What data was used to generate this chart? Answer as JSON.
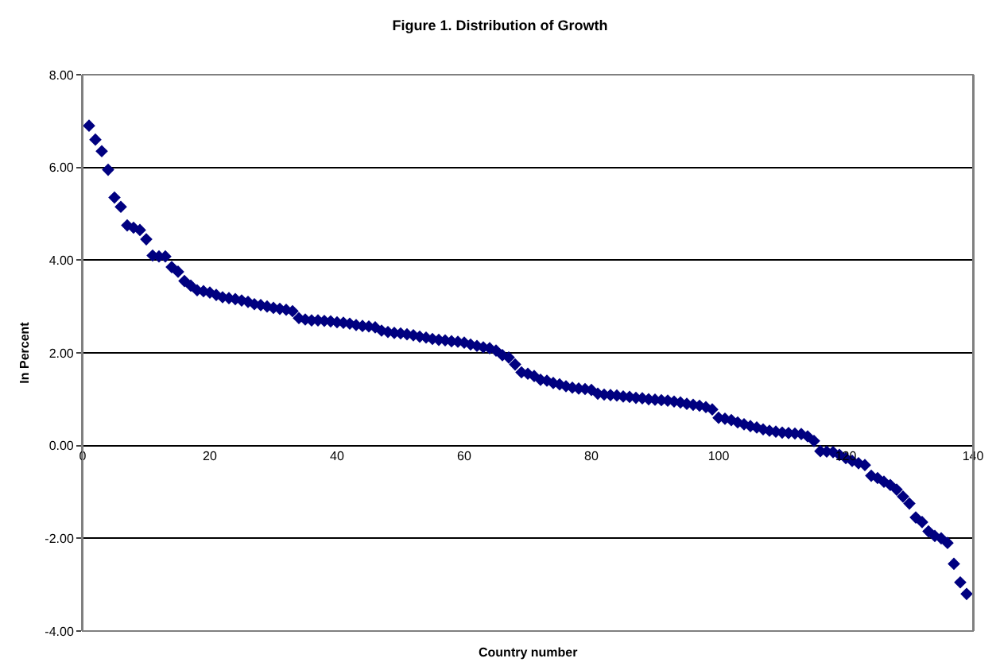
{
  "chart_data": {
    "type": "scatter",
    "title": "Figure 1. Distribution of Growth",
    "xlabel": "Country number",
    "ylabel": "In Percent",
    "x": [
      1,
      2,
      3,
      4,
      5,
      6,
      7,
      8,
      9,
      10,
      11,
      12,
      13,
      14,
      15,
      16,
      17,
      18,
      19,
      20,
      21,
      22,
      23,
      24,
      25,
      26,
      27,
      28,
      29,
      30,
      31,
      32,
      33,
      34,
      35,
      36,
      37,
      38,
      39,
      40,
      41,
      42,
      43,
      44,
      45,
      46,
      47,
      48,
      49,
      50,
      51,
      52,
      53,
      54,
      55,
      56,
      57,
      58,
      59,
      60,
      61,
      62,
      63,
      64,
      65,
      66,
      67,
      68,
      69,
      70,
      71,
      72,
      73,
      74,
      75,
      76,
      77,
      78,
      79,
      80,
      81,
      82,
      83,
      84,
      85,
      86,
      87,
      88,
      89,
      90,
      91,
      92,
      93,
      94,
      95,
      96,
      97,
      98,
      99,
      100,
      101,
      102,
      103,
      104,
      105,
      106,
      107,
      108,
      109,
      110,
      111,
      112,
      113,
      114,
      115,
      116,
      117,
      118,
      119,
      120,
      121,
      122,
      123,
      124,
      125,
      126,
      127,
      128,
      129,
      130,
      131,
      132,
      133,
      134,
      135,
      136,
      137,
      138,
      139
    ],
    "series": [
      {
        "color": "#000080",
        "values": [
          6.9,
          6.6,
          6.35,
          5.95,
          5.35,
          5.15,
          4.75,
          4.7,
          4.65,
          4.45,
          4.1,
          4.08,
          4.08,
          3.85,
          3.75,
          3.55,
          3.45,
          3.35,
          3.33,
          3.3,
          3.25,
          3.2,
          3.18,
          3.16,
          3.13,
          3.1,
          3.05,
          3.03,
          3.0,
          2.97,
          2.95,
          2.93,
          2.9,
          2.75,
          2.72,
          2.7,
          2.7,
          2.69,
          2.68,
          2.66,
          2.65,
          2.63,
          2.6,
          2.58,
          2.57,
          2.55,
          2.48,
          2.45,
          2.43,
          2.42,
          2.4,
          2.38,
          2.35,
          2.33,
          2.3,
          2.28,
          2.27,
          2.25,
          2.24,
          2.22,
          2.18,
          2.15,
          2.12,
          2.1,
          2.05,
          1.95,
          1.9,
          1.75,
          1.58,
          1.55,
          1.5,
          1.42,
          1.4,
          1.35,
          1.32,
          1.28,
          1.25,
          1.23,
          1.22,
          1.2,
          1.12,
          1.1,
          1.09,
          1.08,
          1.06,
          1.05,
          1.03,
          1.02,
          1.0,
          0.99,
          0.98,
          0.97,
          0.95,
          0.93,
          0.9,
          0.88,
          0.86,
          0.83,
          0.78,
          0.6,
          0.58,
          0.55,
          0.5,
          0.46,
          0.42,
          0.39,
          0.35,
          0.32,
          0.3,
          0.28,
          0.27,
          0.26,
          0.25,
          0.2,
          0.1,
          -0.12,
          -0.13,
          -0.14,
          -0.2,
          -0.27,
          -0.33,
          -0.38,
          -0.42,
          -0.65,
          -0.7,
          -0.78,
          -0.85,
          -0.95,
          -1.1,
          -1.25,
          -1.55,
          -1.65,
          -1.85,
          -1.95,
          -2.0,
          -2.1,
          -2.55,
          -2.95,
          -3.2
        ]
      }
    ],
    "xlim": [
      0,
      140
    ],
    "xticks": [
      0,
      20,
      40,
      60,
      80,
      100,
      120,
      140
    ],
    "ylim": [
      -4,
      8
    ],
    "yticks": [
      {
        "value": -4,
        "label": "-4.00"
      },
      {
        "value": -2,
        "label": "-2.00"
      },
      {
        "value": 0,
        "label": "0.00"
      },
      {
        "value": 2,
        "label": "2.00"
      },
      {
        "value": 4,
        "label": "4.00"
      },
      {
        "value": 6,
        "label": "6.00"
      },
      {
        "value": 8,
        "label": "8.00"
      }
    ],
    "grid": "y",
    "marker": "diamond"
  }
}
